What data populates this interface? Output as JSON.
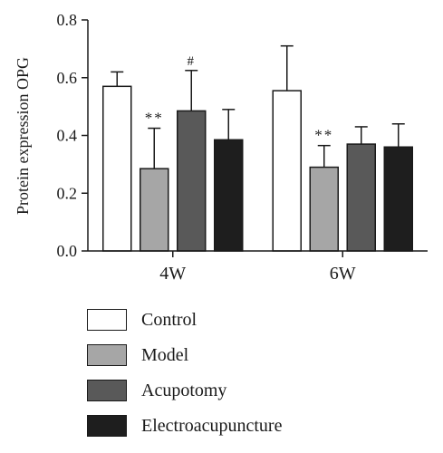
{
  "chart_data": {
    "type": "bar",
    "ylabel": "Protein expression OPG",
    "xlabel": "",
    "ylim": [
      0,
      0.8
    ],
    "yticks": [
      "0.0",
      "0.2",
      "0.4",
      "0.6",
      "0.8"
    ],
    "categories": [
      "4W",
      "6W"
    ],
    "series": [
      {
        "name": "Control",
        "color": "#ffffff",
        "values": [
          0.57,
          0.555
        ],
        "errors": [
          0.05,
          0.155
        ],
        "annotations": [
          "",
          ""
        ]
      },
      {
        "name": "Model",
        "color": "#a6a6a6",
        "values": [
          0.285,
          0.29
        ],
        "errors": [
          0.14,
          0.075
        ],
        "annotations": [
          "**",
          "**"
        ]
      },
      {
        "name": "Acupotomy",
        "color": "#595959",
        "values": [
          0.485,
          0.37
        ],
        "errors": [
          0.14,
          0.06
        ],
        "annotations": [
          "#",
          ""
        ]
      },
      {
        "name": "Electroacupuncture",
        "color": "#1e1e1e",
        "values": [
          0.385,
          0.36
        ],
        "errors": [
          0.105,
          0.08
        ],
        "annotations": [
          "",
          ""
        ]
      }
    ],
    "grid": false,
    "legend_position": "bottom"
  }
}
